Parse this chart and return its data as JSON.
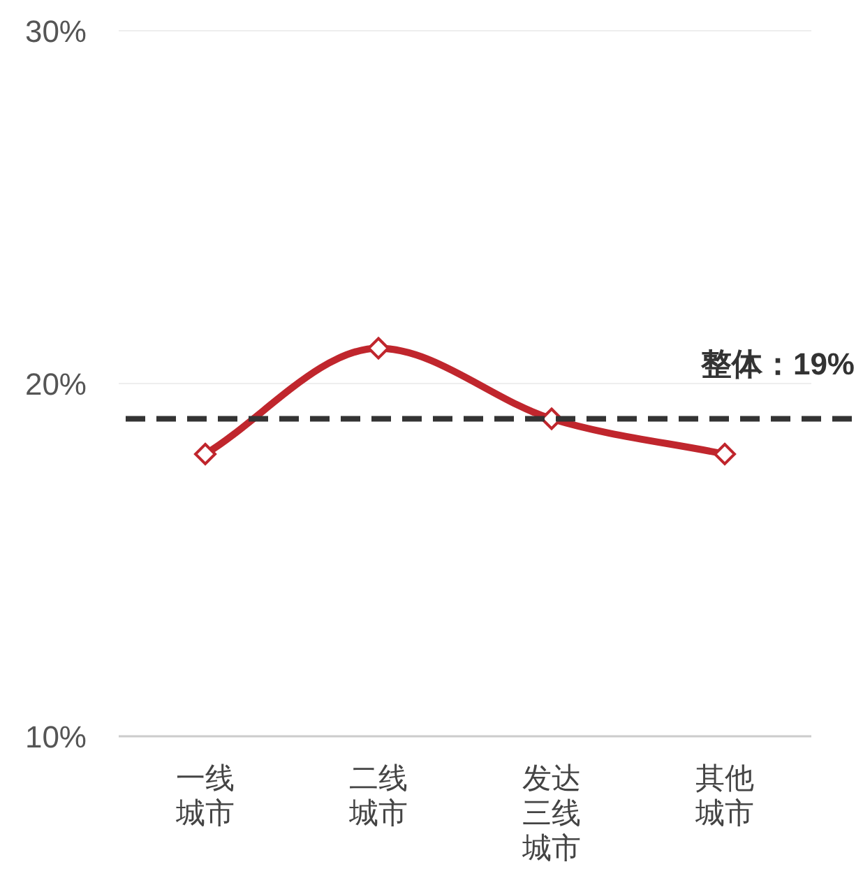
{
  "chart_data": {
    "type": "line",
    "categories": [
      "一线城市",
      "二线城市",
      "发达三线城市",
      "其他城市"
    ],
    "series": [
      {
        "color": "#c0262d",
        "values": [
          18,
          21,
          19,
          18
        ]
      }
    ],
    "ylim": [
      10,
      30
    ],
    "yticks": [
      {
        "value": 10,
        "label": "10%"
      },
      {
        "value": 20,
        "label": "20%"
      },
      {
        "value": 30,
        "label": "30%"
      }
    ],
    "grid": "y",
    "marker": "diamond",
    "line_style": "solid",
    "ref_lines": [
      {
        "axis": "y",
        "value": 19,
        "label": "整体：19%",
        "color": "#333333",
        "line_style": "dashed"
      }
    ]
  }
}
